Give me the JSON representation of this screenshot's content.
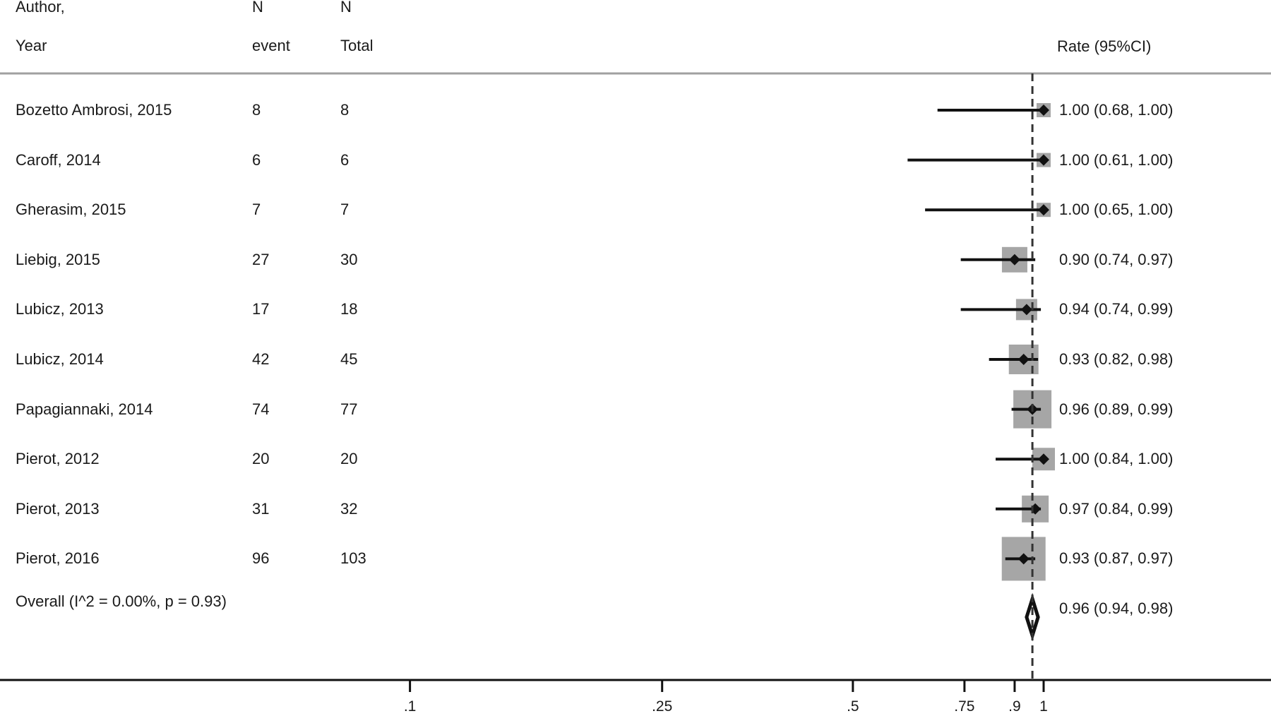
{
  "chart_data": {
    "type": "forest",
    "headers": {
      "col1": [
        "Author,",
        "Year"
      ],
      "col2": [
        "N",
        "event"
      ],
      "col3": [
        "N",
        "Total"
      ],
      "col4": "Rate (95%CI)"
    },
    "studies": [
      {
        "label": "Bozetto Ambrosi, 2015",
        "events": "8",
        "total": "8",
        "rate": 1.0,
        "lower": 0.68,
        "upper": 1.0,
        "ci_text": "1.00 (0.68, 1.00)"
      },
      {
        "label": "Caroff, 2014",
        "events": "6",
        "total": "6",
        "rate": 1.0,
        "lower": 0.61,
        "upper": 1.0,
        "ci_text": "1.00 (0.61, 1.00)"
      },
      {
        "label": "Gherasim, 2015",
        "events": "7",
        "total": "7",
        "rate": 1.0,
        "lower": 0.65,
        "upper": 1.0,
        "ci_text": "1.00 (0.65, 1.00)"
      },
      {
        "label": "Liebig, 2015",
        "events": "27",
        "total": "30",
        "rate": 0.9,
        "lower": 0.74,
        "upper": 0.97,
        "ci_text": "0.90 (0.74, 0.97)"
      },
      {
        "label": "Lubicz, 2013",
        "events": "17",
        "total": "18",
        "rate": 0.94,
        "lower": 0.74,
        "upper": 0.99,
        "ci_text": "0.94 (0.74, 0.99)"
      },
      {
        "label": "Lubicz, 2014",
        "events": "42",
        "total": "45",
        "rate": 0.93,
        "lower": 0.82,
        "upper": 0.98,
        "ci_text": "0.93 (0.82, 0.98)"
      },
      {
        "label": "Papagiannaki, 2014",
        "events": "74",
        "total": "77",
        "rate": 0.96,
        "lower": 0.89,
        "upper": 0.99,
        "ci_text": "0.96 (0.89, 0.99)"
      },
      {
        "label": "Pierot, 2012",
        "events": "20",
        "total": "20",
        "rate": 1.0,
        "lower": 0.84,
        "upper": 1.0,
        "ci_text": "1.00 (0.84, 1.00)"
      },
      {
        "label": "Pierot, 2013",
        "events": "31",
        "total": "32",
        "rate": 0.97,
        "lower": 0.84,
        "upper": 0.99,
        "ci_text": "0.97 (0.84, 0.99)"
      },
      {
        "label": "Pierot, 2016",
        "events": "96",
        "total": "103",
        "rate": 0.93,
        "lower": 0.87,
        "upper": 0.97,
        "ci_text": "0.93 (0.87, 0.97)"
      }
    ],
    "overall": {
      "label": "Overall  (I^2 = 0.00%, p = 0.93)",
      "rate": 0.96,
      "lower": 0.94,
      "upper": 0.98,
      "ci_text": "0.96 (0.94, 0.98)"
    },
    "reference_line": 0.96,
    "x_ticks": [
      {
        "value": 0.1,
        "label": ".1"
      },
      {
        "value": 0.25,
        "label": ".25"
      },
      {
        "value": 0.5,
        "label": ".5"
      },
      {
        "value": 0.75,
        "label": ".75"
      },
      {
        "value": 0.9,
        "label": ".9"
      },
      {
        "value": 1.0,
        "label": "1"
      }
    ],
    "colors": {
      "line": "#111111",
      "weight_box": "#a6a6a6",
      "separator": "#a0a0a0"
    }
  }
}
